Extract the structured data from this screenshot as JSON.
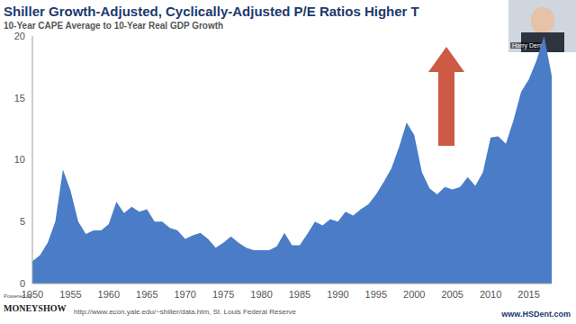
{
  "chart_data": {
    "type": "area",
    "title": "Shiller Growth-Adjusted, Cyclically-Adjusted P/E Ratios Higher T",
    "subtitle": "10-Year CAPE Average to 10-Year Real GDP Growth",
    "x": [
      1950,
      1951,
      1952,
      1953,
      1954,
      1955,
      1956,
      1957,
      1958,
      1959,
      1960,
      1961,
      1962,
      1963,
      1964,
      1965,
      1966,
      1967,
      1968,
      1969,
      1970,
      1971,
      1972,
      1973,
      1974,
      1975,
      1976,
      1977,
      1978,
      1979,
      1980,
      1981,
      1982,
      1983,
      1984,
      1985,
      1986,
      1987,
      1988,
      1989,
      1990,
      1991,
      1992,
      1993,
      1994,
      1995,
      1996,
      1997,
      1998,
      1999,
      2000,
      2001,
      2002,
      2003,
      2004,
      2005,
      2006,
      2007,
      2008,
      2009,
      2010,
      2011,
      2012,
      2013,
      2014,
      2015,
      2016,
      2017,
      2018
    ],
    "values": [
      1.8,
      2.3,
      3.3,
      5.0,
      9.2,
      7.5,
      5.0,
      4.0,
      4.3,
      4.3,
      4.8,
      6.6,
      5.7,
      6.2,
      5.8,
      6.0,
      5.0,
      5.0,
      4.5,
      4.3,
      3.6,
      3.9,
      4.1,
      3.6,
      2.9,
      3.3,
      3.8,
      3.3,
      2.9,
      2.7,
      2.7,
      2.7,
      3.0,
      4.1,
      3.1,
      3.1,
      4.0,
      5.0,
      4.7,
      5.2,
      5.0,
      5.8,
      5.5,
      6.0,
      6.4,
      7.2,
      8.2,
      9.3,
      11.0,
      13.0,
      12.0,
      9.0,
      7.7,
      7.2,
      7.8,
      7.6,
      7.8,
      8.6,
      7.9,
      9.0,
      11.8,
      11.9,
      11.3,
      13.2,
      15.5,
      16.5,
      18.0,
      20.0,
      16.8
    ],
    "color": "#4a7cc8",
    "xlim": [
      1950,
      2018
    ],
    "xticks": [
      1950,
      1955,
      1960,
      1965,
      1970,
      1975,
      1980,
      1985,
      1990,
      1995,
      2000,
      2005,
      2010,
      2015
    ],
    "ylim": [
      0,
      20
    ],
    "yticks": [
      0,
      5,
      10,
      15,
      20
    ],
    "grid": false,
    "annotations": {
      "presenter": "Harry Dent",
      "powered_by": "Powered by",
      "brand": "MONEYSHOW",
      "source": "http://www.econ.yale.edu/~shiller/data.htm, St. Louis Federal Reserve",
      "website": "www.HSDent.com"
    }
  }
}
